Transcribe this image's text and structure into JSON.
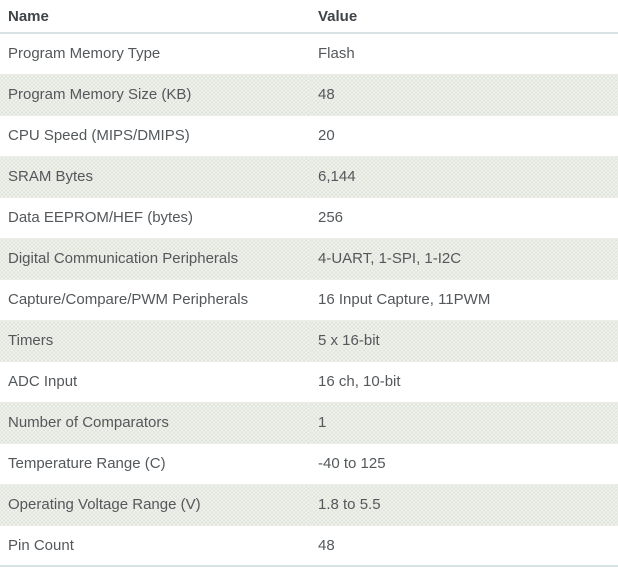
{
  "table": {
    "columns": [
      "Name",
      "Value"
    ],
    "rows": [
      {
        "name": "Program Memory Type",
        "value": "Flash"
      },
      {
        "name": "Program Memory Size (KB)",
        "value": "48"
      },
      {
        "name": "CPU Speed (MIPS/DMIPS)",
        "value": "20"
      },
      {
        "name": "SRAM Bytes",
        "value": "6,144"
      },
      {
        "name": "Data EEPROM/HEF (bytes)",
        "value": "256"
      },
      {
        "name": "Digital Communication Peripherals",
        "value": "4-UART, 1-SPI, 1-I2C"
      },
      {
        "name": "Capture/Compare/PWM Peripherals",
        "value": "16 Input Capture, 11PWM"
      },
      {
        "name": "Timers",
        "value": "5 x 16-bit"
      },
      {
        "name": "ADC Input",
        "value": "16 ch, 10-bit"
      },
      {
        "name": "Number of Comparators",
        "value": "1"
      },
      {
        "name": "Temperature Range (C)",
        "value": "-40 to 125"
      },
      {
        "name": "Operating Voltage Range (V)",
        "value": "1.8 to 5.5"
      },
      {
        "name": "Pin Count",
        "value": "48"
      }
    ],
    "colors": {
      "header_text": "#3f4448",
      "row_text": "#54585b",
      "shaded_row_bg": "#f4f6f2",
      "shaded_row_dot": "#dde3d8",
      "divider": "#d7e2e4",
      "row_border": "#eaede9",
      "page_bg": "#ffffff"
    }
  }
}
